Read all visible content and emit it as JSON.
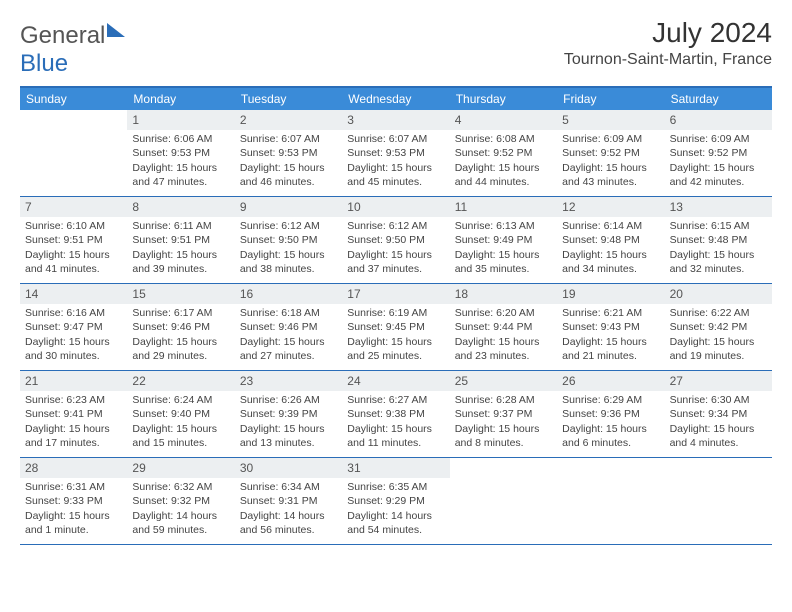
{
  "logo": {
    "word1": "General",
    "word2": "Blue"
  },
  "title": "July 2024",
  "location": "Tournon-Saint-Martin, France",
  "colors": {
    "header_bar": "#3a8bd8",
    "accent": "#2a6db8",
    "daynum_bg": "#eceff1",
    "text": "#444444"
  },
  "weekdays": [
    "Sunday",
    "Monday",
    "Tuesday",
    "Wednesday",
    "Thursday",
    "Friday",
    "Saturday"
  ],
  "weeks": [
    [
      {
        "n": "",
        "sunrise": "",
        "sunset": "",
        "daylight": ""
      },
      {
        "n": "1",
        "sunrise": "Sunrise: 6:06 AM",
        "sunset": "Sunset: 9:53 PM",
        "daylight": "Daylight: 15 hours and 47 minutes."
      },
      {
        "n": "2",
        "sunrise": "Sunrise: 6:07 AM",
        "sunset": "Sunset: 9:53 PM",
        "daylight": "Daylight: 15 hours and 46 minutes."
      },
      {
        "n": "3",
        "sunrise": "Sunrise: 6:07 AM",
        "sunset": "Sunset: 9:53 PM",
        "daylight": "Daylight: 15 hours and 45 minutes."
      },
      {
        "n": "4",
        "sunrise": "Sunrise: 6:08 AM",
        "sunset": "Sunset: 9:52 PM",
        "daylight": "Daylight: 15 hours and 44 minutes."
      },
      {
        "n": "5",
        "sunrise": "Sunrise: 6:09 AM",
        "sunset": "Sunset: 9:52 PM",
        "daylight": "Daylight: 15 hours and 43 minutes."
      },
      {
        "n": "6",
        "sunrise": "Sunrise: 6:09 AM",
        "sunset": "Sunset: 9:52 PM",
        "daylight": "Daylight: 15 hours and 42 minutes."
      }
    ],
    [
      {
        "n": "7",
        "sunrise": "Sunrise: 6:10 AM",
        "sunset": "Sunset: 9:51 PM",
        "daylight": "Daylight: 15 hours and 41 minutes."
      },
      {
        "n": "8",
        "sunrise": "Sunrise: 6:11 AM",
        "sunset": "Sunset: 9:51 PM",
        "daylight": "Daylight: 15 hours and 39 minutes."
      },
      {
        "n": "9",
        "sunrise": "Sunrise: 6:12 AM",
        "sunset": "Sunset: 9:50 PM",
        "daylight": "Daylight: 15 hours and 38 minutes."
      },
      {
        "n": "10",
        "sunrise": "Sunrise: 6:12 AM",
        "sunset": "Sunset: 9:50 PM",
        "daylight": "Daylight: 15 hours and 37 minutes."
      },
      {
        "n": "11",
        "sunrise": "Sunrise: 6:13 AM",
        "sunset": "Sunset: 9:49 PM",
        "daylight": "Daylight: 15 hours and 35 minutes."
      },
      {
        "n": "12",
        "sunrise": "Sunrise: 6:14 AM",
        "sunset": "Sunset: 9:48 PM",
        "daylight": "Daylight: 15 hours and 34 minutes."
      },
      {
        "n": "13",
        "sunrise": "Sunrise: 6:15 AM",
        "sunset": "Sunset: 9:48 PM",
        "daylight": "Daylight: 15 hours and 32 minutes."
      }
    ],
    [
      {
        "n": "14",
        "sunrise": "Sunrise: 6:16 AM",
        "sunset": "Sunset: 9:47 PM",
        "daylight": "Daylight: 15 hours and 30 minutes."
      },
      {
        "n": "15",
        "sunrise": "Sunrise: 6:17 AM",
        "sunset": "Sunset: 9:46 PM",
        "daylight": "Daylight: 15 hours and 29 minutes."
      },
      {
        "n": "16",
        "sunrise": "Sunrise: 6:18 AM",
        "sunset": "Sunset: 9:46 PM",
        "daylight": "Daylight: 15 hours and 27 minutes."
      },
      {
        "n": "17",
        "sunrise": "Sunrise: 6:19 AM",
        "sunset": "Sunset: 9:45 PM",
        "daylight": "Daylight: 15 hours and 25 minutes."
      },
      {
        "n": "18",
        "sunrise": "Sunrise: 6:20 AM",
        "sunset": "Sunset: 9:44 PM",
        "daylight": "Daylight: 15 hours and 23 minutes."
      },
      {
        "n": "19",
        "sunrise": "Sunrise: 6:21 AM",
        "sunset": "Sunset: 9:43 PM",
        "daylight": "Daylight: 15 hours and 21 minutes."
      },
      {
        "n": "20",
        "sunrise": "Sunrise: 6:22 AM",
        "sunset": "Sunset: 9:42 PM",
        "daylight": "Daylight: 15 hours and 19 minutes."
      }
    ],
    [
      {
        "n": "21",
        "sunrise": "Sunrise: 6:23 AM",
        "sunset": "Sunset: 9:41 PM",
        "daylight": "Daylight: 15 hours and 17 minutes."
      },
      {
        "n": "22",
        "sunrise": "Sunrise: 6:24 AM",
        "sunset": "Sunset: 9:40 PM",
        "daylight": "Daylight: 15 hours and 15 minutes."
      },
      {
        "n": "23",
        "sunrise": "Sunrise: 6:26 AM",
        "sunset": "Sunset: 9:39 PM",
        "daylight": "Daylight: 15 hours and 13 minutes."
      },
      {
        "n": "24",
        "sunrise": "Sunrise: 6:27 AM",
        "sunset": "Sunset: 9:38 PM",
        "daylight": "Daylight: 15 hours and 11 minutes."
      },
      {
        "n": "25",
        "sunrise": "Sunrise: 6:28 AM",
        "sunset": "Sunset: 9:37 PM",
        "daylight": "Daylight: 15 hours and 8 minutes."
      },
      {
        "n": "26",
        "sunrise": "Sunrise: 6:29 AM",
        "sunset": "Sunset: 9:36 PM",
        "daylight": "Daylight: 15 hours and 6 minutes."
      },
      {
        "n": "27",
        "sunrise": "Sunrise: 6:30 AM",
        "sunset": "Sunset: 9:34 PM",
        "daylight": "Daylight: 15 hours and 4 minutes."
      }
    ],
    [
      {
        "n": "28",
        "sunrise": "Sunrise: 6:31 AM",
        "sunset": "Sunset: 9:33 PM",
        "daylight": "Daylight: 15 hours and 1 minute."
      },
      {
        "n": "29",
        "sunrise": "Sunrise: 6:32 AM",
        "sunset": "Sunset: 9:32 PM",
        "daylight": "Daylight: 14 hours and 59 minutes."
      },
      {
        "n": "30",
        "sunrise": "Sunrise: 6:34 AM",
        "sunset": "Sunset: 9:31 PM",
        "daylight": "Daylight: 14 hours and 56 minutes."
      },
      {
        "n": "31",
        "sunrise": "Sunrise: 6:35 AM",
        "sunset": "Sunset: 9:29 PM",
        "daylight": "Daylight: 14 hours and 54 minutes."
      },
      {
        "n": "",
        "sunrise": "",
        "sunset": "",
        "daylight": ""
      },
      {
        "n": "",
        "sunrise": "",
        "sunset": "",
        "daylight": ""
      },
      {
        "n": "",
        "sunrise": "",
        "sunset": "",
        "daylight": ""
      }
    ]
  ]
}
